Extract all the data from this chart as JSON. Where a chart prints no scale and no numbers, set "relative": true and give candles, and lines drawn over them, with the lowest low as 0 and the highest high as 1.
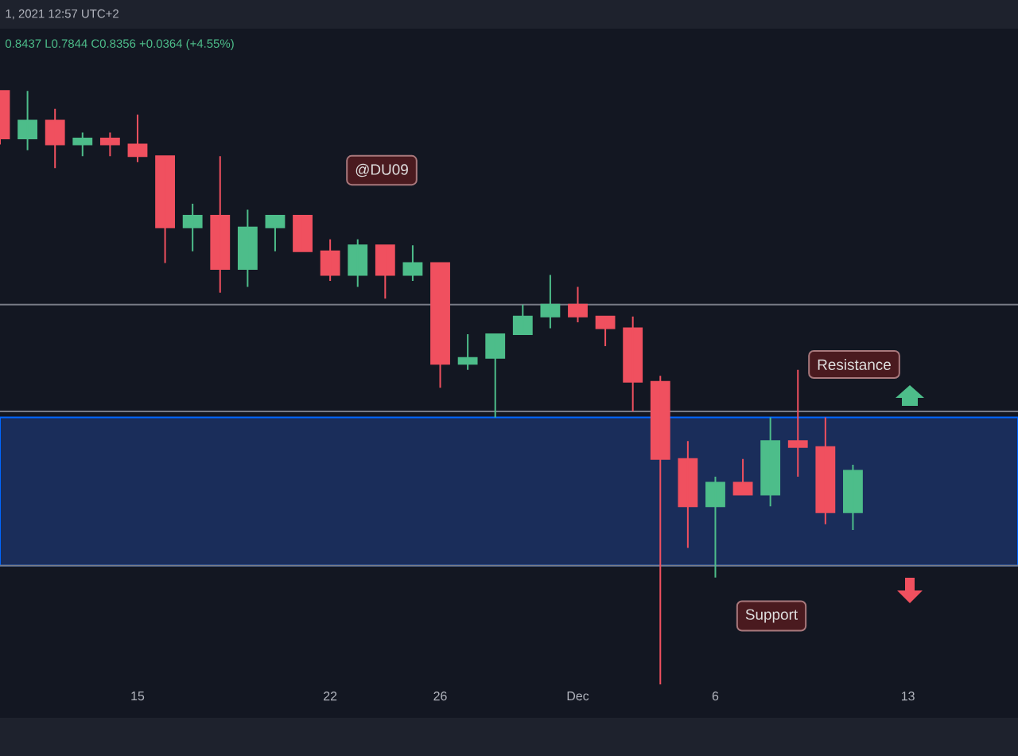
{
  "chart_data": {
    "type": "candlestick",
    "relative": true,
    "x": [
      "2021-11-10",
      "2021-11-11",
      "2021-11-12",
      "2021-11-13",
      "2021-11-14",
      "2021-11-15",
      "2021-11-16",
      "2021-11-17",
      "2021-11-18",
      "2021-11-19",
      "2021-11-20",
      "2021-11-21",
      "2021-11-22",
      "2021-11-23",
      "2021-11-24",
      "2021-11-25",
      "2021-11-26",
      "2021-11-27",
      "2021-11-28",
      "2021-11-29",
      "2021-11-30",
      "2021-12-01",
      "2021-12-02",
      "2021-12-03",
      "2021-12-04",
      "2021-12-05",
      "2021-12-06",
      "2021-12-07",
      "2021-12-08",
      "2021-12-09",
      "2021-12-10",
      "2021-12-11"
    ],
    "ohlc": [
      [
        1.0,
        1.0,
        0.91,
        0.92
      ],
      [
        0.92,
        1.0,
        0.9,
        0.95
      ],
      [
        0.95,
        0.97,
        0.87,
        0.91
      ],
      [
        0.91,
        0.93,
        0.89,
        0.92
      ],
      [
        0.92,
        0.93,
        0.89,
        0.91
      ],
      [
        0.91,
        0.96,
        0.88,
        0.89
      ],
      [
        0.89,
        0.89,
        0.71,
        0.77
      ],
      [
        0.77,
        0.81,
        0.73,
        0.79
      ],
      [
        0.79,
        0.89,
        0.66,
        0.7
      ],
      [
        0.7,
        0.8,
        0.67,
        0.77
      ],
      [
        0.77,
        0.79,
        0.73,
        0.79
      ],
      [
        0.79,
        0.79,
        0.73,
        0.73
      ],
      [
        0.73,
        0.75,
        0.68,
        0.69
      ],
      [
        0.69,
        0.75,
        0.67,
        0.74
      ],
      [
        0.74,
        0.74,
        0.65,
        0.69
      ],
      [
        0.69,
        0.74,
        0.68,
        0.71
      ],
      [
        0.71,
        0.71,
        0.5,
        0.54
      ],
      [
        0.54,
        0.59,
        0.53,
        0.55
      ],
      [
        0.55,
        0.59,
        0.45,
        0.59
      ],
      [
        0.59,
        0.64,
        0.59,
        0.62
      ],
      [
        0.62,
        0.69,
        0.6,
        0.64
      ],
      [
        0.64,
        0.67,
        0.61,
        0.62
      ],
      [
        0.62,
        0.62,
        0.57,
        0.6
      ],
      [
        0.6,
        0.62,
        0.46,
        0.51
      ],
      [
        0.51,
        0.52,
        0.0,
        0.38
      ],
      [
        0.38,
        0.41,
        0.23,
        0.3
      ],
      [
        0.3,
        0.35,
        0.18,
        0.34
      ],
      [
        0.34,
        0.38,
        0.32,
        0.32
      ],
      [
        0.32,
        0.45,
        0.3,
        0.41
      ],
      [
        0.41,
        0.53,
        0.35,
        0.4
      ],
      [
        0.4,
        0.45,
        0.27,
        0.29
      ],
      [
        0.29,
        0.37,
        0.26,
        0.36
      ]
    ],
    "colors": [
      "#f0505f",
      "#4dbd8a",
      "#f0505f",
      "#4dbd8a",
      "#f0505f",
      "#f0505f",
      "#f0505f",
      "#4dbd8a",
      "#f0505f",
      "#4dbd8a",
      "#4dbd8a",
      "#f0505f",
      "#f0505f",
      "#4dbd8a",
      "#f0505f",
      "#4dbd8a",
      "#f0505f",
      "#4dbd8a",
      "#4dbd8a",
      "#4dbd8a",
      "#4dbd8a",
      "#f0505f",
      "#f0505f",
      "#f0505f",
      "#f0505f",
      "#f0505f",
      "#4dbd8a",
      "#f0505f",
      "#4dbd8a",
      "#f0505f",
      "#f0505f",
      "#4dbd8a"
    ],
    "xlim": [
      "2021-11-10",
      "2021-12-17"
    ],
    "xticks": [
      {
        "value": "2021-11-15",
        "label": "15"
      },
      {
        "value": "2021-11-22",
        "label": "22"
      },
      {
        "value": "2021-11-26",
        "label": "26"
      },
      {
        "value": "2021-12-01",
        "label": "Dec"
      },
      {
        "value": "2021-12-06",
        "label": "6"
      },
      {
        "value": "2021-12-13",
        "label": "13"
      }
    ],
    "ref_lines": [
      {
        "axis": "y",
        "value": 0.64,
        "color": "#787b86"
      },
      {
        "axis": "y",
        "value": 0.46,
        "color": "#787b86"
      },
      {
        "axis": "y",
        "value": 0.2,
        "color": "#787b86"
      }
    ],
    "bands": [
      {
        "axis": "y",
        "from": 0.2,
        "to": 0.45,
        "color": "#1a2d5a"
      }
    ],
    "annotations": [
      "1, 2021 12:57 UTC+2",
      "0.8437 L0.7844 C0.8356 +0.0364 (+4.55%)",
      "@DU09",
      "Resistance",
      "Support"
    ]
  }
}
